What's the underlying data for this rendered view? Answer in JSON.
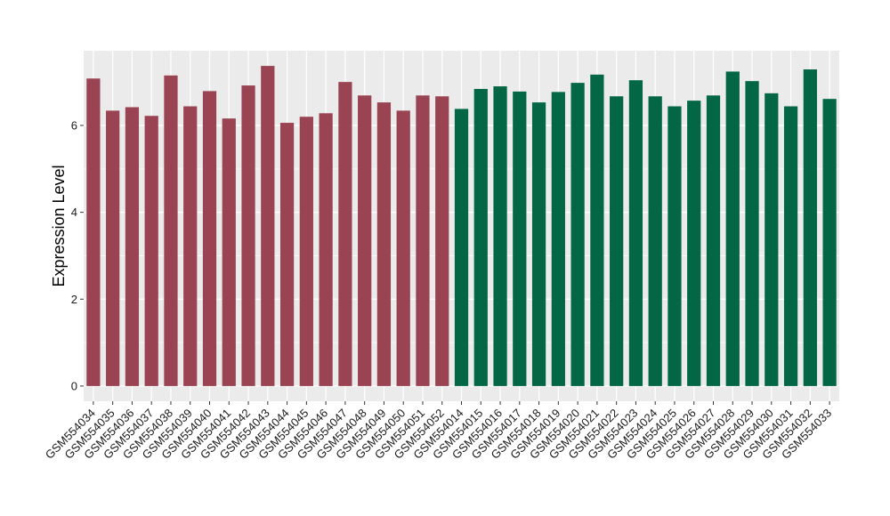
{
  "chart_data": {
    "type": "bar",
    "title": "",
    "xlabel": "",
    "ylabel": "Expression Level",
    "ylim": [
      -0.35,
      7.72
    ],
    "yticks": [
      0,
      2,
      4,
      6
    ],
    "grid": true,
    "legend": "none",
    "colors": {
      "panel": "#ebebeb",
      "grid": "#ffffff",
      "group_a": "#9a4453",
      "group_b": "#036645"
    },
    "categories": [
      "GSM554034",
      "GSM554035",
      "GSM554036",
      "GSM554037",
      "GSM554038",
      "GSM554039",
      "GSM554040",
      "GSM554041",
      "GSM554042",
      "GSM554043",
      "GSM554044",
      "GSM554045",
      "GSM554046",
      "GSM554047",
      "GSM554048",
      "GSM554049",
      "GSM554050",
      "GSM554051",
      "GSM554052",
      "GSM554014",
      "GSM554015",
      "GSM554016",
      "GSM554017",
      "GSM554018",
      "GSM554019",
      "GSM554020",
      "GSM554021",
      "GSM554022",
      "GSM554023",
      "GSM554024",
      "GSM554025",
      "GSM554026",
      "GSM554027",
      "GSM554028",
      "GSM554029",
      "GSM554030",
      "GSM554031",
      "GSM554032",
      "GSM554033"
    ],
    "values": [
      7.08,
      6.34,
      6.42,
      6.22,
      7.15,
      6.44,
      6.79,
      6.16,
      6.92,
      7.37,
      6.06,
      6.2,
      6.28,
      7.0,
      6.69,
      6.53,
      6.34,
      6.69,
      6.67,
      6.38,
      6.84,
      6.9,
      6.78,
      6.53,
      6.77,
      6.98,
      7.17,
      6.67,
      7.04,
      6.67,
      6.44,
      6.57,
      6.69,
      7.24,
      7.02,
      6.74,
      6.44,
      7.29,
      6.61
    ],
    "groups": [
      "a",
      "a",
      "a",
      "a",
      "a",
      "a",
      "a",
      "a",
      "a",
      "a",
      "a",
      "a",
      "a",
      "a",
      "a",
      "a",
      "a",
      "a",
      "a",
      "b",
      "b",
      "b",
      "b",
      "b",
      "b",
      "b",
      "b",
      "b",
      "b",
      "b",
      "b",
      "b",
      "b",
      "b",
      "b",
      "b",
      "b",
      "b",
      "b"
    ]
  }
}
